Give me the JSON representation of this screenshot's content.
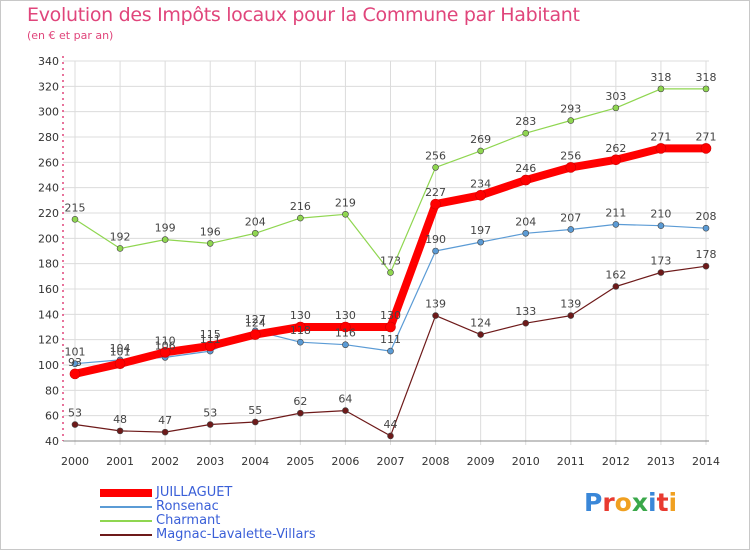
{
  "header": {
    "title": "Evolution des Impôts locaux pour la Commune par Habitant",
    "subtitle": "(en € et par an)"
  },
  "logo": {
    "text": "Proxiti",
    "colors": [
      "#3a87d8",
      "#e83a30",
      "#f0a020",
      "#3aa84a",
      "#3a87d8",
      "#e83a30",
      "#f0a020"
    ]
  },
  "chart_data": {
    "type": "line",
    "x": [
      2000,
      2001,
      2002,
      2003,
      2004,
      2005,
      2006,
      2007,
      2008,
      2009,
      2010,
      2011,
      2012,
      2013,
      2014
    ],
    "ylim": [
      40,
      340
    ],
    "ytick_step": 20,
    "grid": true,
    "legend_position": "bottom-left",
    "series": [
      {
        "name": "JUILLAGUET",
        "color": "#ff0000",
        "values": [
          93,
          101,
          110,
          115,
          124,
          130,
          130,
          130,
          227,
          234,
          246,
          256,
          262,
          271,
          271
        ]
      },
      {
        "name": "Ronsenac",
        "color": "#5b9bd5",
        "values": [
          101,
          104,
          106,
          111,
          127,
          118,
          116,
          111,
          190,
          197,
          204,
          207,
          211,
          210,
          208
        ]
      },
      {
        "name": "Charmant",
        "color": "#8fd650",
        "values": [
          215,
          192,
          199,
          196,
          204,
          216,
          219,
          173,
          256,
          269,
          283,
          293,
          303,
          318,
          318
        ]
      },
      {
        "name": "Magnac-Lavalette-Villars",
        "color": "#6e1a1a",
        "values": [
          53,
          48,
          47,
          53,
          55,
          62,
          64,
          44,
          139,
          124,
          133,
          139,
          162,
          173,
          178
        ]
      }
    ]
  }
}
